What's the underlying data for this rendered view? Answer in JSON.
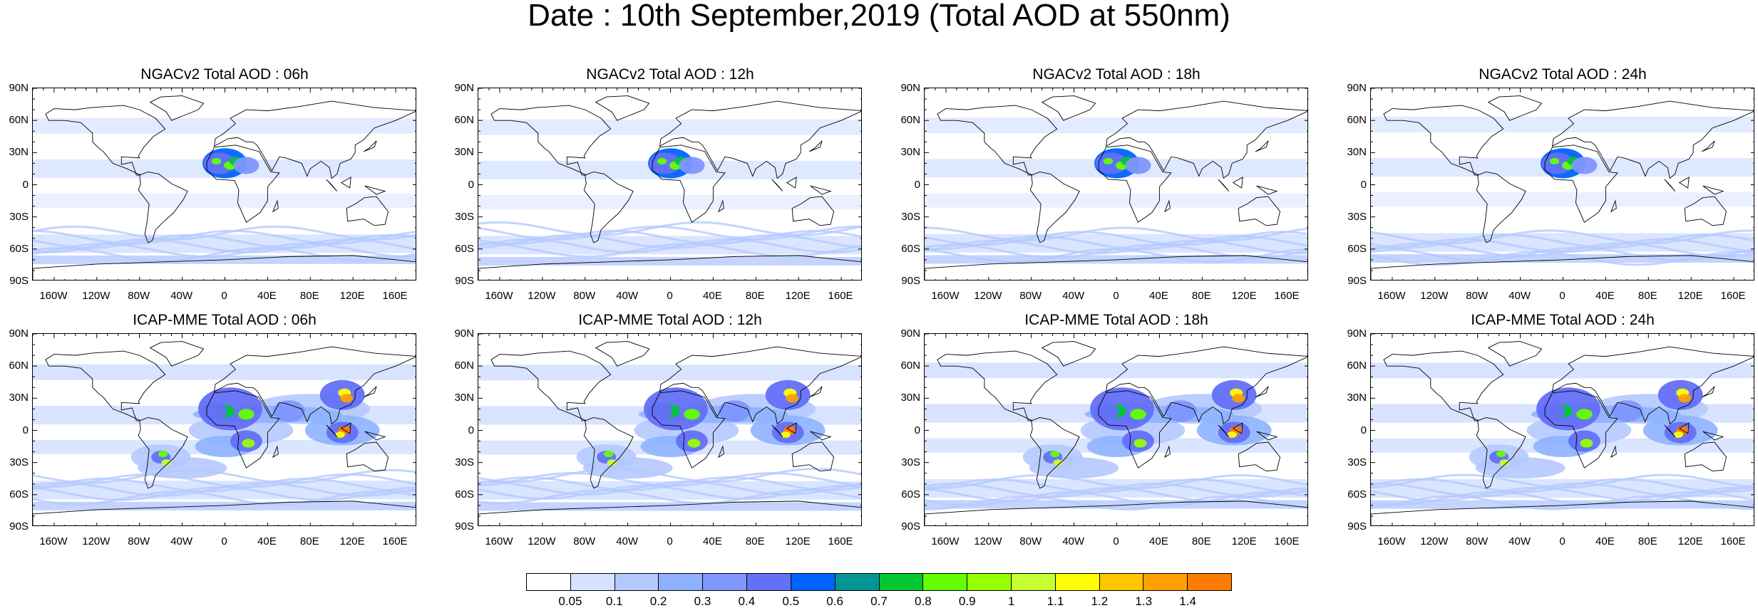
{
  "title": "Date : 10th September,2019 (Total AOD at 550nm)",
  "panels": [
    {
      "title": "NGACv2 Total AOD : 06h",
      "model": "NGACv2",
      "hour": "06h"
    },
    {
      "title": "NGACv2 Total AOD : 12h",
      "model": "NGACv2",
      "hour": "12h"
    },
    {
      "title": "NGACv2 Total AOD : 18h",
      "model": "NGACv2",
      "hour": "18h"
    },
    {
      "title": "NGACv2 Total AOD : 24h",
      "model": "NGACv2",
      "hour": "24h"
    },
    {
      "title": "ICAP-MME Total AOD : 06h",
      "model": "ICAP-MME",
      "hour": "06h"
    },
    {
      "title": "ICAP-MME Total AOD : 12h",
      "model": "ICAP-MME",
      "hour": "12h"
    },
    {
      "title": "ICAP-MME Total AOD : 18h",
      "model": "ICAP-MME",
      "hour": "18h"
    },
    {
      "title": "ICAP-MME Total AOD : 24h",
      "model": "ICAP-MME",
      "hour": "24h"
    }
  ],
  "lat_labels": [
    "90N",
    "60N",
    "30N",
    "0",
    "30S",
    "60S",
    "90S"
  ],
  "lon_labels": [
    "160W",
    "120W",
    "80W",
    "40W",
    "0",
    "40E",
    "80E",
    "120E",
    "160E"
  ],
  "colorbar": {
    "labels": [
      "0.05",
      "0.1",
      "0.2",
      "0.3",
      "0.4",
      "0.5",
      "0.6",
      "0.7",
      "0.8",
      "0.9",
      "1",
      "1.1",
      "1.2",
      "1.3",
      "1.4"
    ],
    "colors": [
      "#ffffff",
      "#d6e2ff",
      "#b5c9ff",
      "#8eb2ff",
      "#7f96ff",
      "#6370f8",
      "#0063ff",
      "#009696",
      "#00c633",
      "#63ff00",
      "#96ff00",
      "#c6ff33",
      "#ffff00",
      "#ffc600",
      "#ffa000",
      "#ff7c00",
      "#ff1900"
    ]
  }
}
